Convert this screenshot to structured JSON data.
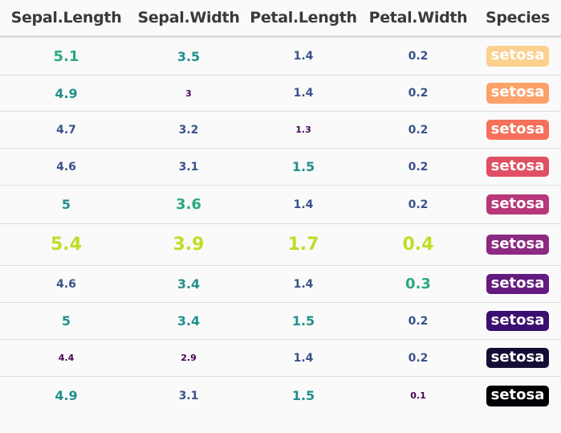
{
  "chart_data": {
    "type": "table",
    "columns": [
      "Sepal.Length",
      "Sepal.Width",
      "Petal.Length",
      "Petal.Width",
      "Species"
    ],
    "rows": [
      [
        "5.1",
        "3.5",
        "1.4",
        "0.2",
        "setosa"
      ],
      [
        "4.9",
        "3",
        "1.4",
        "0.2",
        "setosa"
      ],
      [
        "4.7",
        "3.2",
        "1.3",
        "0.2",
        "setosa"
      ],
      [
        "4.6",
        "3.1",
        "1.5",
        "0.2",
        "setosa"
      ],
      [
        "5",
        "3.6",
        "1.4",
        "0.2",
        "setosa"
      ],
      [
        "5.4",
        "3.9",
        "1.7",
        "0.4",
        "setosa"
      ],
      [
        "4.6",
        "3.4",
        "1.4",
        "0.3",
        "setosa"
      ],
      [
        "5",
        "3.4",
        "1.5",
        "0.2",
        "setosa"
      ],
      [
        "4.4",
        "2.9",
        "1.4",
        "0.2",
        "setosa"
      ],
      [
        "4.9",
        "3.1",
        "1.5",
        "0.1",
        "setosa"
      ]
    ],
    "colors": {
      "viridis": [
        "#440154",
        "#3b528b",
        "#21908c",
        "#2aa97b",
        "#bddf26"
      ],
      "species_badges": [
        "#fcd08f",
        "#fca268",
        "#f6705c",
        "#e04f63",
        "#b73779",
        "#8c2981",
        "#641a80",
        "#3b0f70",
        "#140e36",
        "#000004"
      ],
      "header_text": "#3a3a3a",
      "rule": "#dedede"
    }
  }
}
